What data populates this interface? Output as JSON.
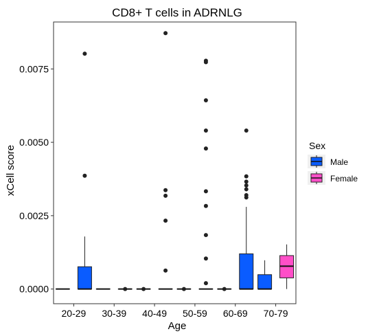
{
  "chart_data": {
    "type": "boxplot",
    "title": "CD8+ T cells in ADRNLG",
    "xlabel": "Age",
    "ylabel": "xCell score",
    "categories": [
      "20-29",
      "30-39",
      "40-49",
      "50-59",
      "60-69",
      "70-79"
    ],
    "ylim": [
      -0.0005,
      0.0091
    ],
    "yticks": [
      0.0,
      0.0025,
      0.005,
      0.0075
    ],
    "ytick_labels": [
      "0.0000",
      "0.0025",
      "0.0050",
      "0.0075"
    ],
    "grid": false,
    "legend": {
      "title": "Sex",
      "placement": "right",
      "entries": [
        {
          "name": "Male",
          "color": "#0a5cff"
        },
        {
          "name": "Female",
          "color": "#ff4fc8"
        }
      ]
    },
    "series": [
      {
        "name": "Male",
        "color": "#0a5cff",
        "boxes": [
          {
            "category": "20-29",
            "min": 0,
            "q1": 0,
            "median": 0,
            "q3": 0,
            "max": 0,
            "outliers": []
          },
          {
            "category": "20-29",
            "min": 0,
            "q1": 0,
            "median": 0,
            "q3": 0.00076,
            "max": 0.00179,
            "outliers": [
              0.00386,
              0.00802
            ]
          },
          {
            "category": "30-39",
            "min": 0,
            "q1": 0,
            "median": 0,
            "q3": 0,
            "max": 0,
            "outliers": []
          },
          {
            "category": "30-39",
            "min": 0,
            "q1": 0,
            "median": 0,
            "q3": 0,
            "max": 0,
            "outliers": [
              0.0
            ]
          },
          {
            "category": "40-49",
            "min": 0,
            "q1": 0,
            "median": 0,
            "q3": 0,
            "max": 0,
            "outliers": [
              0.0
            ]
          },
          {
            "category": "40-49",
            "min": 0,
            "q1": 0,
            "median": 0,
            "q3": 0,
            "max": 0,
            "outliers": [
              0.00063,
              0.00233,
              0.00318,
              0.00337,
              0.00872
            ]
          },
          {
            "category": "50-59",
            "min": 0,
            "q1": 0,
            "median": 0,
            "q3": 0,
            "max": 0,
            "outliers": [
              0.0
            ]
          },
          {
            "category": "50-59",
            "min": 0,
            "q1": 0,
            "median": 0,
            "q3": 0,
            "max": 0,
            "outliers": [
              0.0002,
              0.00104,
              0.00184,
              0.00283,
              0.00333,
              0.00479,
              0.0054,
              0.00643,
              0.00773,
              0.00778
            ]
          },
          {
            "category": "60-69",
            "min": 0,
            "q1": 0,
            "median": 0,
            "q3": 0,
            "max": 0,
            "outliers": [
              0.0
            ]
          },
          {
            "category": "60-69",
            "min": 0,
            "q1": 0,
            "median": 0,
            "q3": 0.0012,
            "max": 0.0028,
            "outliers": [
              0.00312,
              0.0032,
              0.0034,
              0.00353,
              0.00366,
              0.00384,
              0.0054
            ]
          },
          {
            "category": "70-79",
            "min": 0,
            "q1": 0,
            "median": 0,
            "q3": 0.00049,
            "max": 0.00098,
            "outliers": []
          }
        ]
      },
      {
        "name": "Female",
        "color": "#ff4fc8",
        "boxes": [
          {
            "category": "70-79",
            "min": 0,
            "q1": 0.00038,
            "median": 0.00078,
            "q3": 0.00114,
            "max": 0.00152,
            "outliers": []
          }
        ]
      }
    ]
  }
}
